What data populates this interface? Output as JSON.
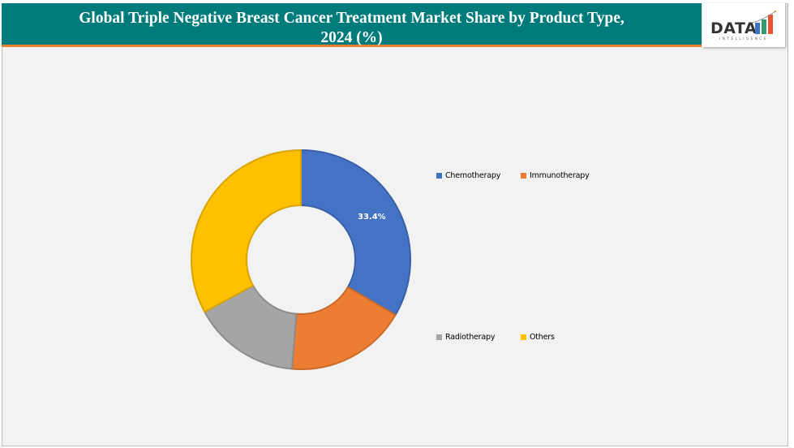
{
  "header": {
    "title_line1": "Global Triple Negative Breast Cancer Treatment Market Share by Product Type,",
    "title_line2": "2024 (%)",
    "logo": {
      "text": "DATA",
      "subtext": "INTELLIGENCE",
      "bar_colors": [
        "#3b73c9",
        "#2e9d6f",
        "#e8542f"
      ]
    }
  },
  "colors": {
    "header_bg": "#007b7b",
    "header_accent": "#ed7d31",
    "plot_bg": "#f2f2f2"
  },
  "legend": [
    {
      "label": "Chemotherapy",
      "color": "#4472c4"
    },
    {
      "label": "Immunotherapy",
      "color": "#ed7d31"
    },
    {
      "label": "Radiotherapy",
      "color": "#a5a5a5"
    },
    {
      "label": "Others",
      "color": "#ffc000"
    }
  ],
  "data_labels": {
    "chemotherapy": "33.4%"
  },
  "chart_data": {
    "type": "pie",
    "subtype": "donut",
    "title": "Global Triple Negative Breast Cancer Treatment Market Share by Product Type, 2024 (%)",
    "categories": [
      "Chemotherapy",
      "Immunotherapy",
      "Radiotherapy",
      "Others"
    ],
    "values": [
      33.4,
      17.9,
      15.8,
      32.9
    ],
    "labeled_values": {
      "Chemotherapy": 33.4
    },
    "colors": [
      "#4472c4",
      "#ed7d31",
      "#a5a5a5",
      "#ffc000"
    ],
    "unit": "%",
    "legend_position": "right",
    "start_angle_deg": 0,
    "direction": "clockwise"
  }
}
